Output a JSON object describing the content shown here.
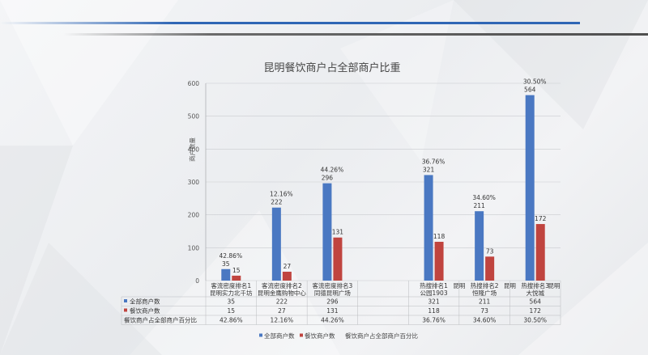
{
  "chart_data": {
    "type": "bar",
    "title": "昆明餐饮商户占全部商户比重",
    "ylabel": "商户数量",
    "ylim": [
      0,
      600
    ],
    "yticks": [
      0,
      100,
      200,
      300,
      400,
      500,
      600
    ],
    "categories": [
      {
        "line1": "客流密度排名1",
        "line2": "昆明实力北千坊"
      },
      {
        "line1": "客流密度排名2",
        "line2": "昆明金鹰购物中心"
      },
      {
        "line1": "客流密度排名3",
        "line2": "同德昆明广场"
      },
      {
        "line1": "",
        "line2": ""
      },
      {
        "line1": "热搜排名1",
        "line2": "公园1903"
      },
      {
        "line1": "热搜排名2",
        "line2": "恒隆广场"
      },
      {
        "line1": "热搜排名3",
        "line2": "大悦城"
      }
    ],
    "series": [
      {
        "name": "全部商户数",
        "color": "#4a78c2",
        "values": [
          35,
          222,
          296,
          null,
          321,
          211,
          564
        ]
      },
      {
        "name": "餐饮商户数",
        "color": "#c0443f",
        "values": [
          15,
          27,
          131,
          null,
          118,
          73,
          172
        ]
      }
    ],
    "percent_series": {
      "name": "餐饮商户占全部商户百分比",
      "values": [
        "42.86%",
        "12.16%",
        "44.26%",
        "",
        "36.76%",
        "34.60%",
        "30.50%"
      ]
    },
    "extra_labels": [
      "昆明",
      "昆明",
      "昆明"
    ]
  }
}
